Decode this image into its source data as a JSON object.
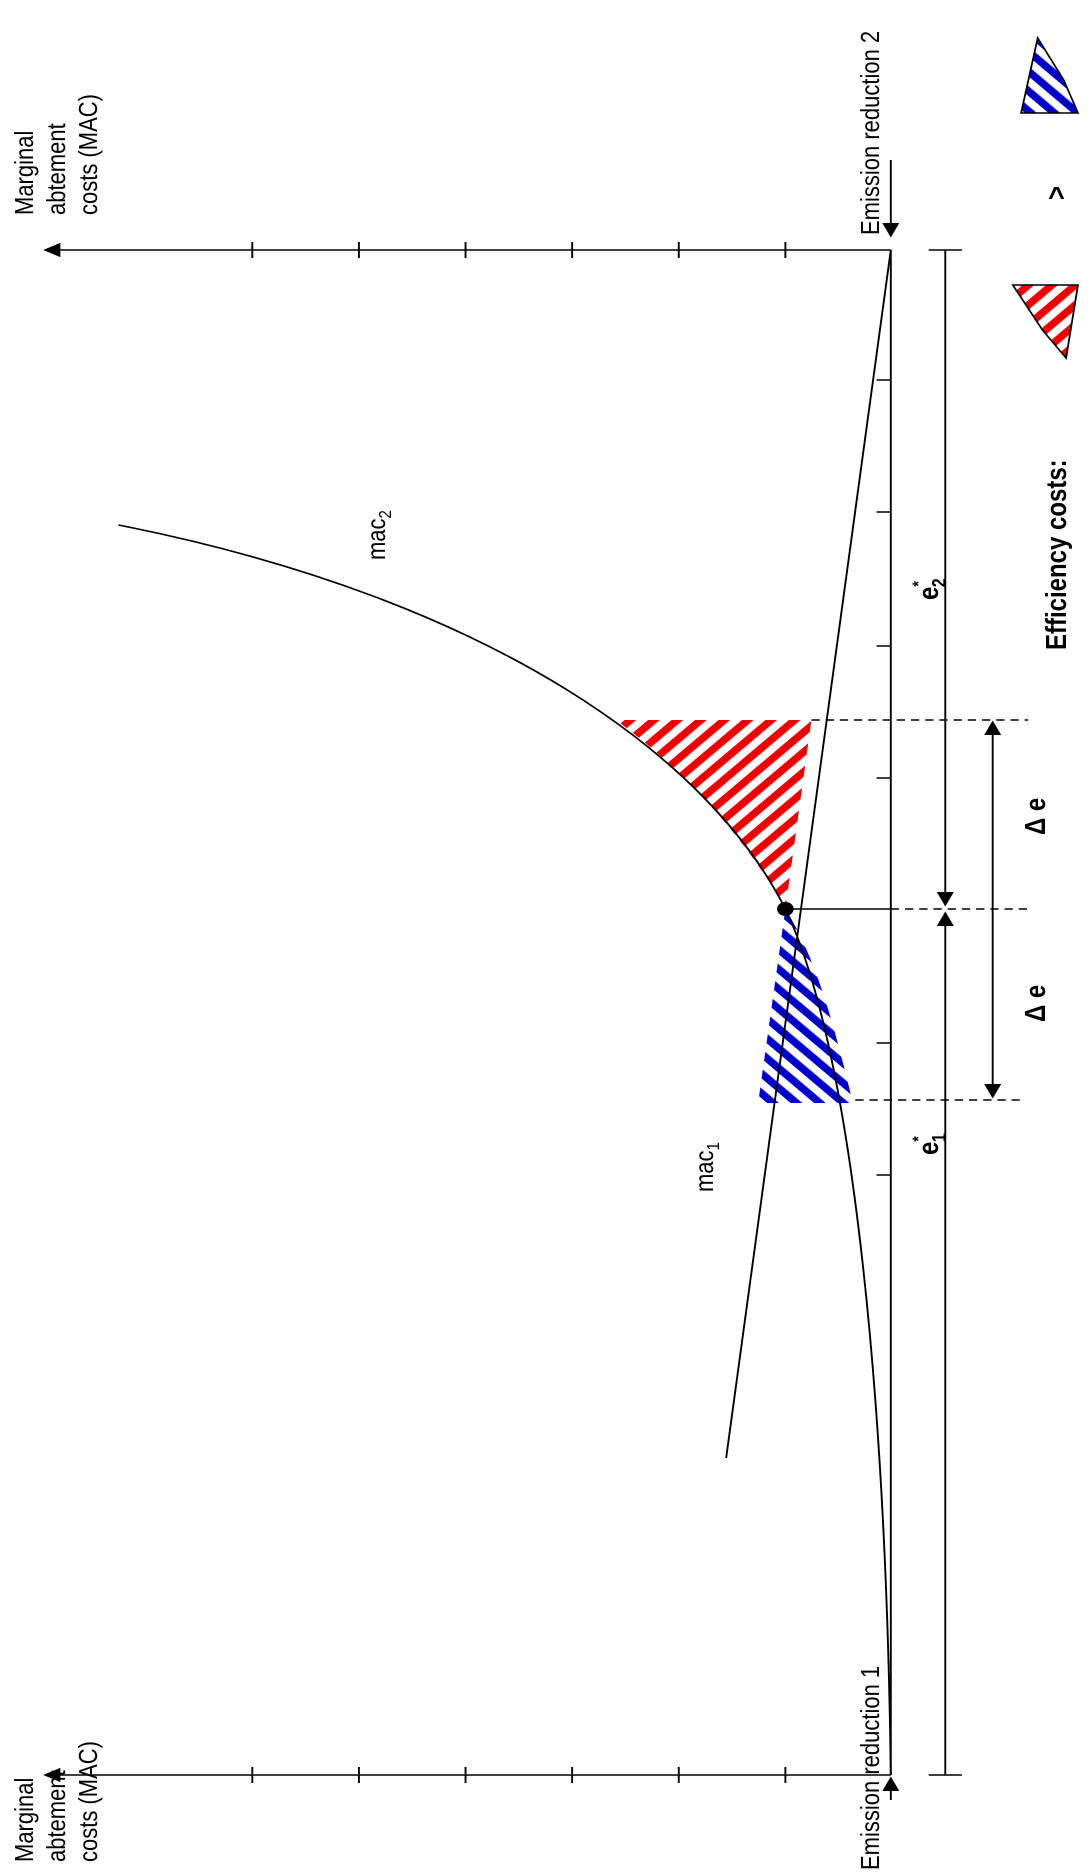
{
  "axes": {
    "top_label": [
      "Marginal",
      "abtement",
      "costs (MAC)"
    ],
    "bottom_label": [
      "Marginal",
      "abtement",
      "costs (MAC)"
    ],
    "emission_reduction_1": "Emission reduction 1",
    "emission_reduction_2": "Emission reduction 2"
  },
  "curves": {
    "mac1": {
      "base": "mac",
      "sub": "1"
    },
    "mac2": {
      "base": "mac",
      "sub": "2"
    }
  },
  "brackets": {
    "e1": {
      "base": "e",
      "sup": "*",
      "sub": "1"
    },
    "e2": {
      "base": "e",
      "sup": "*",
      "sub": "2"
    },
    "delta_upper": "Δ e",
    "delta_lower": "Δ e"
  },
  "legend": {
    "title": "Efficiency costs:",
    "relation": ">"
  }
}
